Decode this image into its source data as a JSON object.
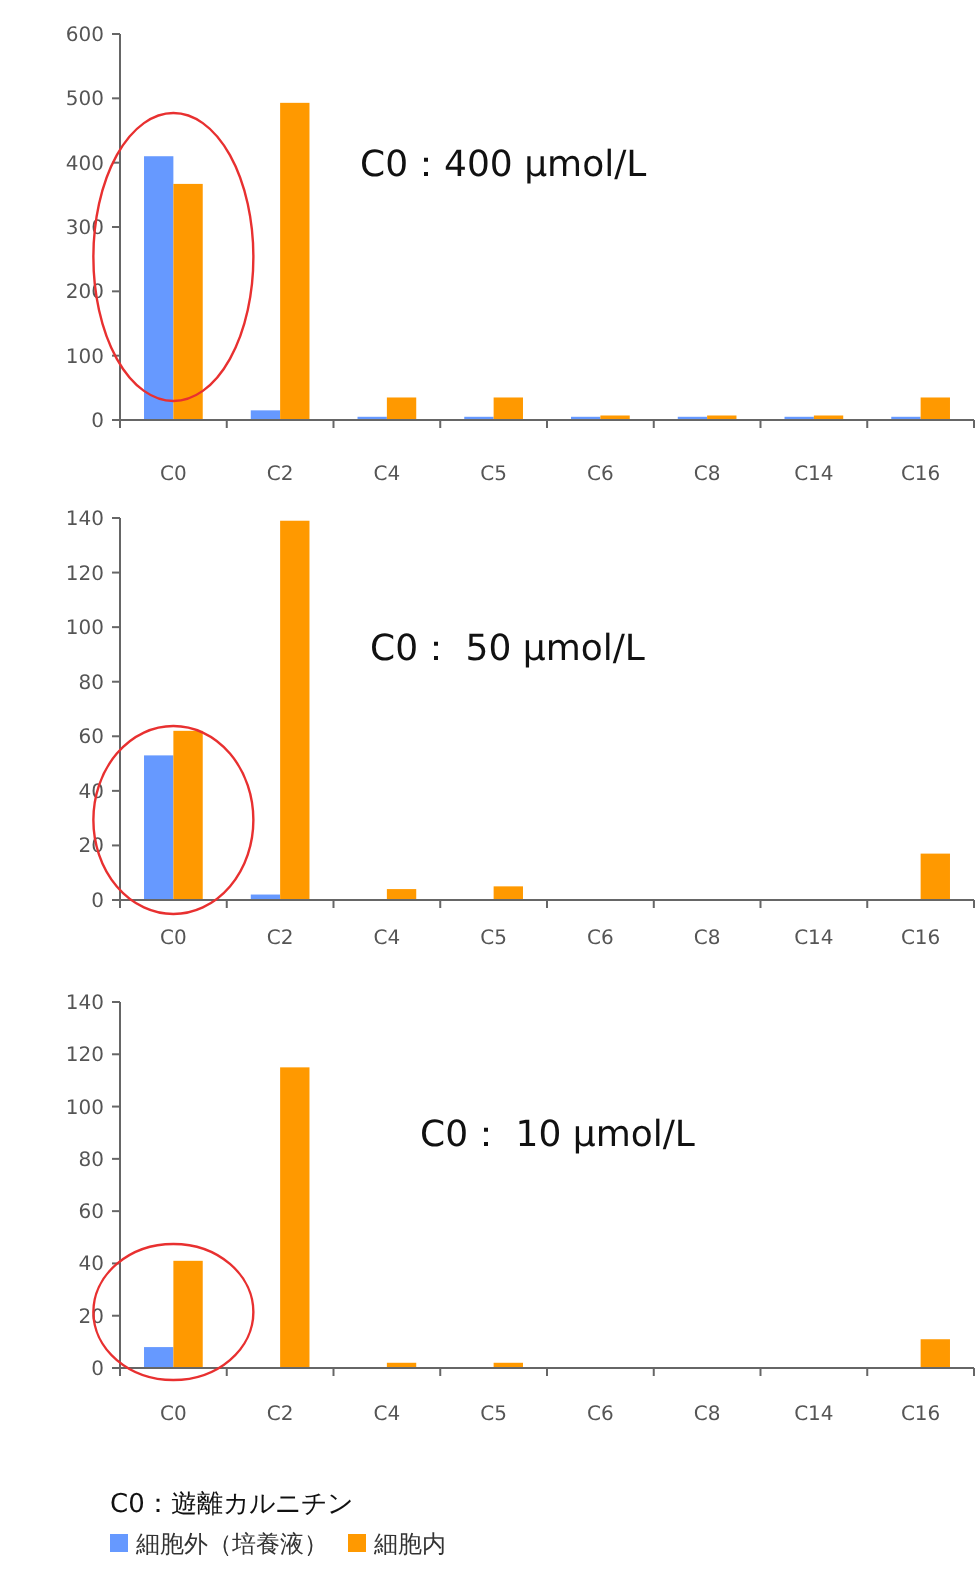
{
  "chart_data": [
    {
      "type": "bar",
      "categories": [
        "C0",
        "C2",
        "C4",
        "C5",
        "C6",
        "C8",
        "C14",
        "C16"
      ],
      "ylim": [
        0,
        600
      ],
      "yticks": [
        0,
        100,
        200,
        300,
        400,
        500,
        600
      ],
      "grid": false,
      "legend": false,
      "annotations": [
        "C0：400 μmol/L"
      ],
      "series": [
        {
          "color": "#6699ff",
          "values": [
            410,
            15,
            5,
            5,
            5,
            5,
            5,
            5
          ]
        },
        {
          "color": "#ff9900",
          "values": [
            367,
            493,
            35,
            35,
            7,
            7,
            7,
            35
          ]
        }
      ]
    },
    {
      "type": "bar",
      "categories": [
        "C0",
        "C2",
        "C4",
        "C5",
        "C6",
        "C8",
        "C14",
        "C16"
      ],
      "ylim": [
        0,
        140
      ],
      "yticks": [
        0,
        20,
        40,
        60,
        80,
        100,
        120,
        140
      ],
      "grid": false,
      "legend": false,
      "annotations": [
        "C0： 50 μmol/L"
      ],
      "series": [
        {
          "color": "#6699ff",
          "values": [
            53,
            2,
            0,
            0,
            0,
            0,
            0,
            0
          ]
        },
        {
          "color": "#ff9900",
          "values": [
            62,
            139,
            4,
            5,
            0,
            0,
            0,
            17
          ]
        }
      ]
    },
    {
      "type": "bar",
      "categories": [
        "C0",
        "C2",
        "C4",
        "C5",
        "C6",
        "C8",
        "C14",
        "C16"
      ],
      "ylim": [
        0,
        140
      ],
      "yticks": [
        0,
        20,
        40,
        60,
        80,
        100,
        120,
        140
      ],
      "grid": false,
      "legend": "bottom",
      "annotations": [
        "C0： 10 μmol/L",
        "C0：遊離カルニチン"
      ],
      "series": [
        {
          "name": "細胞外（培養液）",
          "color": "#6699ff",
          "values": [
            8,
            0,
            0,
            0,
            0,
            0,
            0,
            0
          ]
        },
        {
          "name": "細胞内",
          "color": "#ff9900",
          "values": [
            41,
            115,
            2,
            2,
            0,
            0,
            0,
            11
          ]
        }
      ]
    }
  ]
}
